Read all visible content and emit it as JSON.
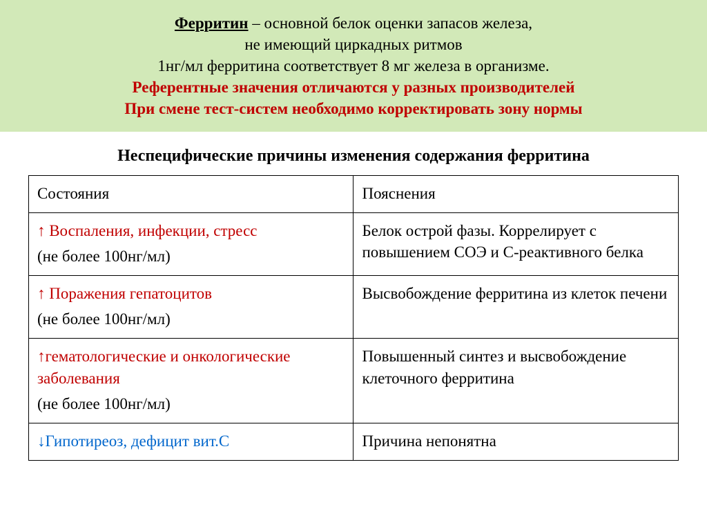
{
  "banner": {
    "title_word": "Ферритин",
    "line1_rest": " – основной белок оценки запасов железа,",
    "line2": "не имеющий циркадных ритмов",
    "line3": "1нг/мл ферритина соответствует 8 мг железа в организме.",
    "line4": "Референтные значения отличаются у разных производителей",
    "line5": "При смене тест-систем необходимо корректировать зону нормы"
  },
  "subtitle": "Неспецифические причины изменения содержания ферритина",
  "table": {
    "header": {
      "col1": "Состояния",
      "col2": "Пояснения"
    },
    "rows": [
      {
        "cond_main": " ↑ Воспаления, инфекции, стресс",
        "cond_note": "(не более 100нг/мл)",
        "expl": "Белок острой фазы. Коррелирует с повышением СОЭ и С-реактивного белка",
        "cond_color": "red"
      },
      {
        "cond_main": "↑ Поражения гепатоцитов",
        "cond_note": "(не более 100нг/мл)",
        "expl": "Высвобождение ферритина из клеток печени",
        "cond_color": "red"
      },
      {
        "cond_main": "↑гематологические и онкологические заболевания",
        "cond_note": "(не более 100нг/мл)",
        "expl": "Повышенный синтез и высвобождение клеточного ферритина",
        "cond_color": "red"
      },
      {
        "cond_main": "↓Гипотиреоз, дефицит вит.С",
        "cond_note": "",
        "expl": "Причина непонятна",
        "cond_color": "blue"
      }
    ]
  },
  "colors": {
    "banner_bg": "#d2e9b8",
    "red_text": "#c00000",
    "blue_text": "#0066cc",
    "border": "#000000",
    "page_bg": "#ffffff"
  },
  "typography": {
    "body_font": "Times New Roman",
    "banner_fontsize": 23,
    "subtitle_fontsize": 24,
    "table_fontsize": 23
  }
}
